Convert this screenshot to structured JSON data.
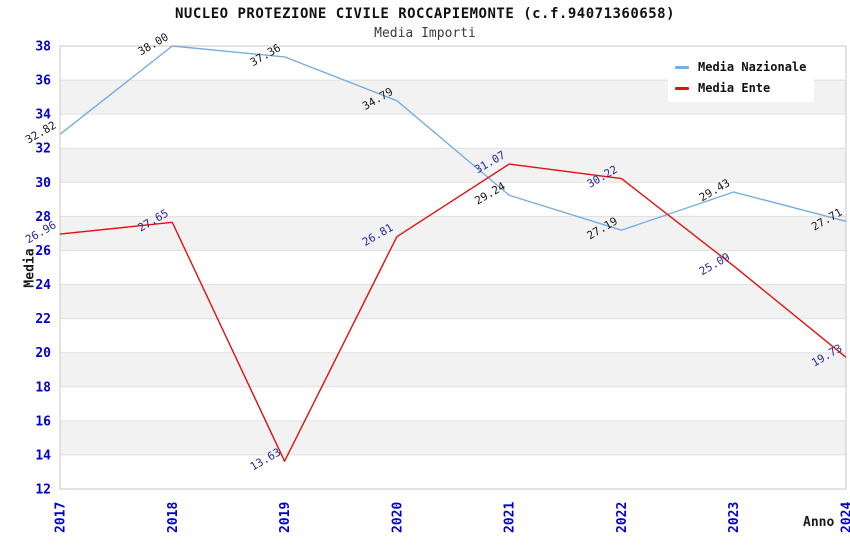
{
  "header": {
    "title": "NUCLEO PROTEZIONE CIVILE ROCCAPIEMONTE (c.f.94071360658)",
    "subtitle": "Media Importi"
  },
  "axes": {
    "y_label": "Media",
    "x_label": "Anno"
  },
  "legend": {
    "position": "top-right",
    "items": [
      {
        "label": "Media Nazionale",
        "color": "#79ade0"
      },
      {
        "label": "Media Ente",
        "color": "#e01111"
      }
    ]
  },
  "colors": {
    "tick": "#0000cd",
    "grid": "#e0e0e0",
    "band": "#f2f2f2",
    "border": "#c8c8c8",
    "background": "#ffffff",
    "title": "#111111",
    "subtitle": "#3c3c3c"
  },
  "chart_data": {
    "type": "line",
    "title": "NUCLEO PROTEZIONE CIVILE ROCCAPIEMONTE (c.f.94071360658)",
    "subtitle": "Media Importi",
    "xlabel": "Anno",
    "ylabel": "Media",
    "x": [
      "2017",
      "2018",
      "2019",
      "2020",
      "2021",
      "2022",
      "2023",
      "2024"
    ],
    "ylim": [
      12,
      38
    ],
    "ytick_step": 2,
    "yticks": [
      12,
      14,
      16,
      18,
      20,
      22,
      24,
      26,
      28,
      30,
      32,
      34,
      36,
      38
    ],
    "grid": true,
    "alternating_bands": true,
    "legend_position": "top-right",
    "series": [
      {
        "name": "Media Nazionale",
        "color": "#79ade0",
        "label_color": "#1a1a1a",
        "values": [
          32.82,
          38.0,
          37.36,
          34.79,
          29.24,
          27.19,
          29.43,
          27.71
        ]
      },
      {
        "name": "Media Ente",
        "color": "#e01111",
        "label_color": "#2a2a99",
        "values": [
          26.96,
          27.65,
          13.63,
          26.81,
          31.07,
          30.22,
          25.09,
          19.73
        ]
      }
    ]
  }
}
